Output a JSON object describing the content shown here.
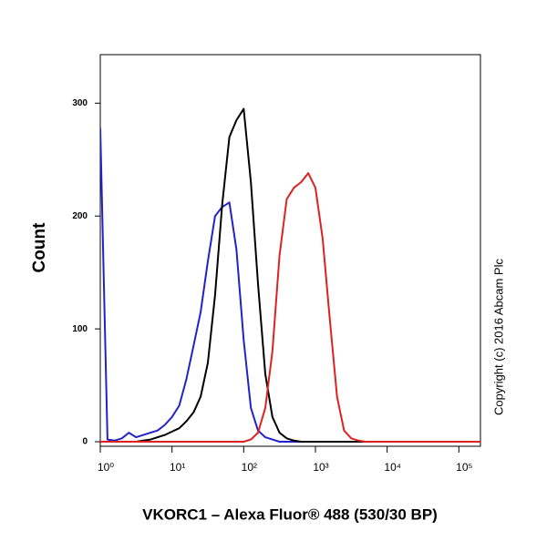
{
  "chart_data": {
    "type": "line",
    "xlabel": "VKORC1 – Alexa Fluor® 488 (530/30 BP)",
    "ylabel": "Count",
    "annotation": "Copyright (c) 2016 Abcam Plc",
    "log_x": true,
    "x": [
      1,
      1.26,
      1.58,
      2,
      2.51,
      3.16,
      3.98,
      5.01,
      6.31,
      7.94,
      10,
      12.6,
      15.8,
      20,
      25.1,
      31.6,
      39.8,
      50.1,
      63.1,
      79.4,
      100,
      126,
      158,
      200,
      251,
      316,
      398,
      501,
      631,
      794,
      1000,
      1260,
      1580,
      2000,
      2510,
      3160,
      3980,
      5010,
      6310,
      7940,
      10000,
      12600,
      15800,
      20000,
      25100,
      31600,
      39800,
      50100,
      63100,
      79400,
      100000,
      126000,
      158000,
      200000
    ],
    "series": [
      {
        "color": "#2222cc",
        "values": [
          278,
          2,
          1,
          3,
          8,
          4,
          6,
          8,
          10,
          15,
          22,
          32,
          55,
          85,
          115,
          160,
          200,
          208,
          212,
          170,
          90,
          30,
          10,
          4,
          2,
          0,
          0,
          0,
          0,
          0,
          0,
          0,
          0,
          0,
          0,
          0,
          0,
          0,
          0,
          0,
          0,
          0,
          0,
          0,
          0,
          0,
          0,
          0,
          0,
          0,
          0,
          0,
          0,
          0
        ]
      },
      {
        "color": "#000000",
        "values": [
          0,
          0,
          0,
          0,
          0,
          0,
          1,
          2,
          4,
          6,
          9,
          12,
          18,
          26,
          40,
          70,
          130,
          210,
          270,
          285,
          295,
          230,
          140,
          60,
          22,
          8,
          3,
          1,
          0,
          0,
          0,
          0,
          0,
          0,
          0,
          0,
          0,
          0,
          0,
          0,
          0,
          0,
          0,
          0,
          0,
          0,
          0,
          0,
          0,
          0,
          0,
          0,
          0,
          0
        ]
      },
      {
        "color": "#dd2222",
        "values": [
          0,
          0,
          0,
          0,
          0,
          0,
          0,
          0,
          0,
          0,
          0,
          0,
          0,
          0,
          0,
          0,
          0,
          0,
          0,
          0,
          0,
          2,
          8,
          30,
          80,
          165,
          215,
          225,
          230,
          238,
          225,
          180,
          110,
          40,
          10,
          3,
          1,
          0,
          0,
          0,
          0,
          0,
          0,
          0,
          0,
          0,
          0,
          0,
          0,
          0,
          0,
          0,
          0,
          0
        ]
      }
    ],
    "xlim": [
      1,
      200000
    ],
    "xticks": [
      {
        "value": 1,
        "label": "10⁰"
      },
      {
        "value": 10,
        "label": "10¹"
      },
      {
        "value": 100,
        "label": "10²"
      },
      {
        "value": 1000,
        "label": "10³"
      },
      {
        "value": 10000,
        "label": "10⁴"
      },
      {
        "value": 100000,
        "label": "10⁵"
      }
    ],
    "ylim": [
      -4,
      343
    ],
    "yticks": [
      0,
      100,
      200,
      300
    ]
  }
}
